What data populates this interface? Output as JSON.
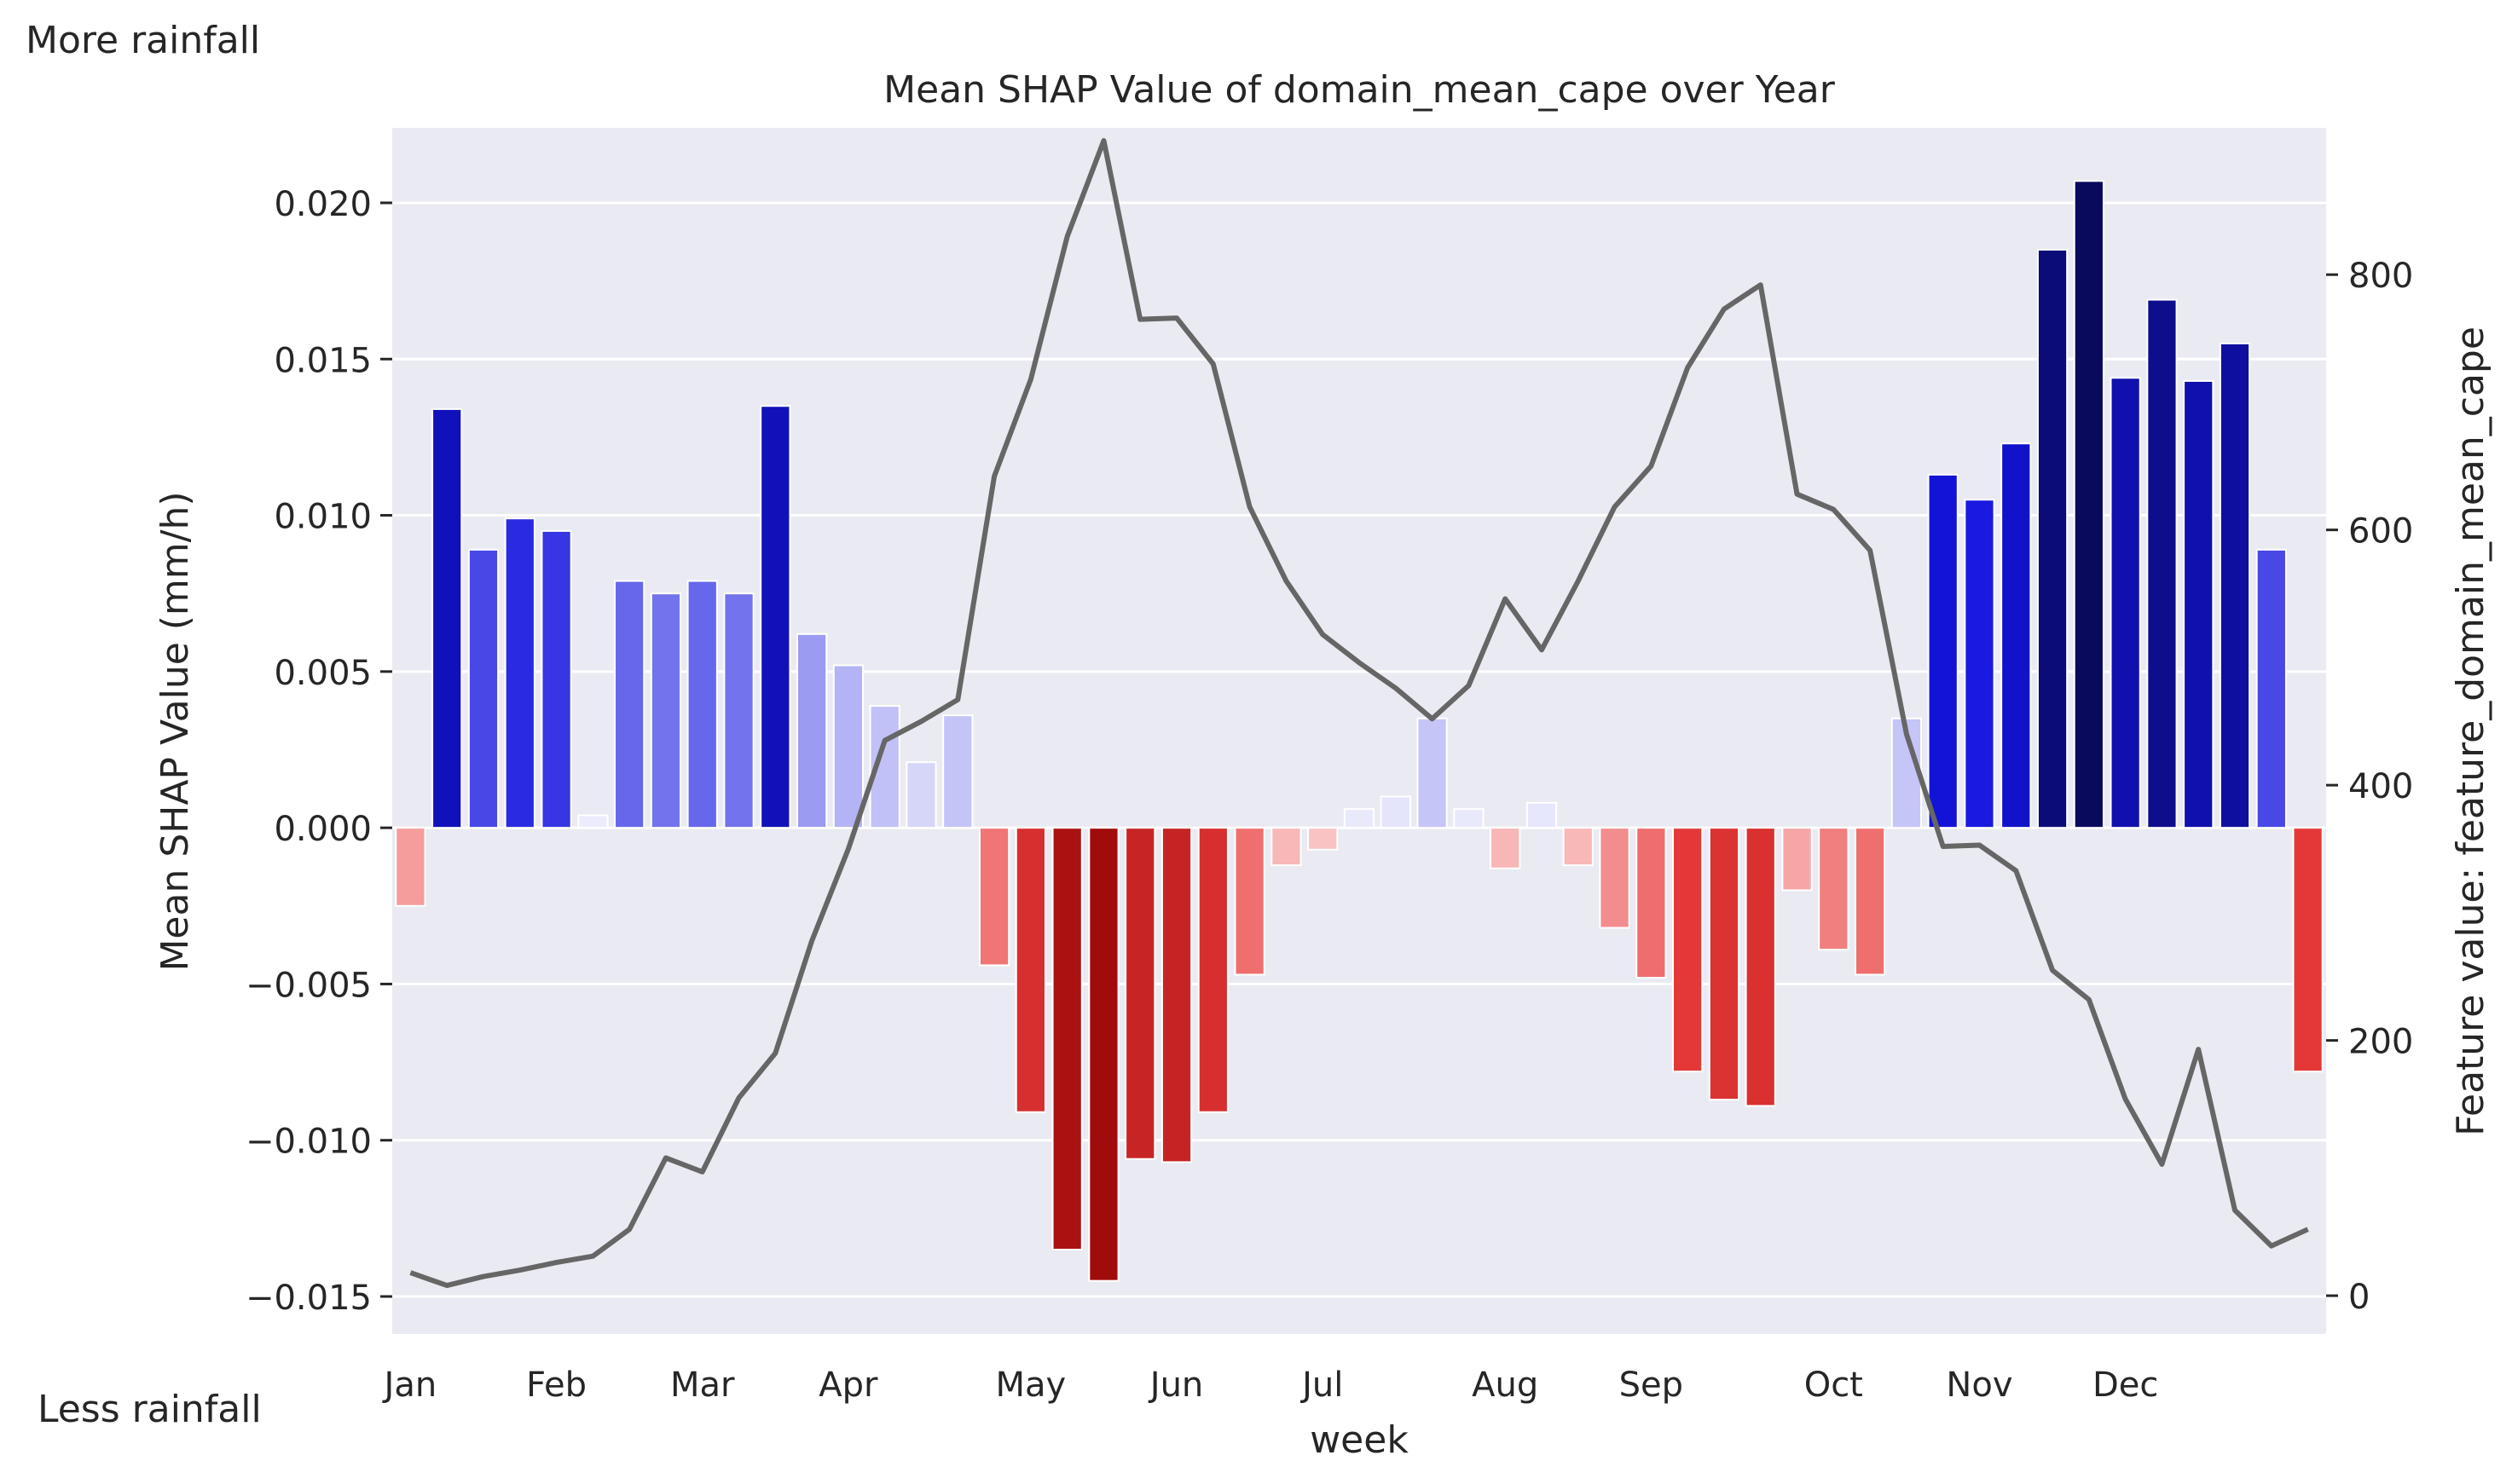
{
  "annotations": {
    "top_left": "More rainfall",
    "bottom_left": "Less rainfall"
  },
  "colors": {
    "background": "#eaeaf2",
    "grid": "#ffffff",
    "line": "#666666",
    "positive_scale": [
      "#b3b3f5",
      "#0a0a5c"
    ],
    "negative_scale": [
      "#fcd6d6",
      "#a00c0c"
    ]
  },
  "chart_data": {
    "type": "bar",
    "title": "Mean SHAP Value of domain_mean_cape over Year",
    "xlabel": "week",
    "ylabel": "Mean SHAP Value (mm/h)",
    "y2label": "Feature value: feature_domain_mean_cape",
    "ylim": [
      -0.0162,
      0.0224
    ],
    "y2lim": [
      -30,
      915
    ],
    "yticks": [
      -0.015,
      -0.01,
      -0.005,
      0.0,
      0.005,
      0.01,
      0.015,
      0.02
    ],
    "ytick_labels": [
      "−0.015",
      "−0.010",
      "−0.005",
      "0.000",
      "0.005",
      "0.010",
      "0.015",
      "0.020"
    ],
    "y2ticks": [
      0,
      200,
      400,
      600,
      800
    ],
    "y2tick_labels": [
      "0",
      "200",
      "400",
      "600",
      "800"
    ],
    "month_ticks": [
      {
        "label": "Jan",
        "week": 1
      },
      {
        "label": "Feb",
        "week": 5
      },
      {
        "label": "Mar",
        "week": 9
      },
      {
        "label": "Apr",
        "week": 13
      },
      {
        "label": "May",
        "week": 18
      },
      {
        "label": "Jun",
        "week": 22
      },
      {
        "label": "Jul",
        "week": 26
      },
      {
        "label": "Aug",
        "week": 31
      },
      {
        "label": "Sep",
        "week": 35
      },
      {
        "label": "Oct",
        "week": 40
      },
      {
        "label": "Nov",
        "week": 44
      },
      {
        "label": "Dec",
        "week": 48
      }
    ],
    "grid": true,
    "weeks": [
      1,
      2,
      3,
      4,
      5,
      6,
      7,
      8,
      9,
      10,
      11,
      12,
      13,
      14,
      15,
      16,
      17,
      18,
      19,
      20,
      21,
      22,
      23,
      24,
      25,
      26,
      27,
      28,
      29,
      30,
      31,
      32,
      33,
      34,
      35,
      36,
      37,
      38,
      39,
      40,
      41,
      42,
      43,
      44,
      45,
      46,
      47,
      48,
      49,
      50,
      51,
      52,
      53
    ],
    "series": [
      {
        "type": "bar",
        "values": [
          -0.0025,
          0.0134,
          0.0089,
          0.0099,
          0.0095,
          0.0004,
          0.0079,
          0.0075,
          0.0079,
          0.0075,
          0.0135,
          0.0062,
          0.0052,
          0.0039,
          0.0021,
          0.0036,
          -0.0044,
          -0.0091,
          -0.0135,
          -0.0145,
          -0.0106,
          -0.0107,
          -0.0091,
          -0.0047,
          -0.0012,
          -0.0007,
          0.0006,
          0.001,
          0.0035,
          0.0006,
          -0.0013,
          0.0008,
          -0.0012,
          -0.0032,
          -0.0048,
          -0.0078,
          -0.0087,
          -0.0089,
          -0.002,
          -0.0039,
          -0.0047,
          0.0035,
          0.0113,
          0.0105,
          0.0123,
          0.0185,
          0.0207,
          0.0144,
          0.0169,
          0.0143,
          0.0155,
          0.0089,
          -0.0078
        ]
      },
      {
        "type": "line",
        "axis": "right",
        "values": [
          18,
          8,
          15,
          20,
          26,
          31,
          52,
          108,
          97,
          155,
          190,
          278,
          350,
          435,
          450,
          467,
          642,
          718,
          830,
          905,
          765,
          766,
          730,
          618,
          560,
          518,
          496,
          476,
          452,
          478,
          546,
          506,
          560,
          618,
          650,
          727,
          773,
          792,
          628,
          616,
          584,
          440,
          352,
          353,
          333,
          255,
          232,
          154,
          103,
          193,
          67,
          39,
          52
        ]
      }
    ]
  }
}
